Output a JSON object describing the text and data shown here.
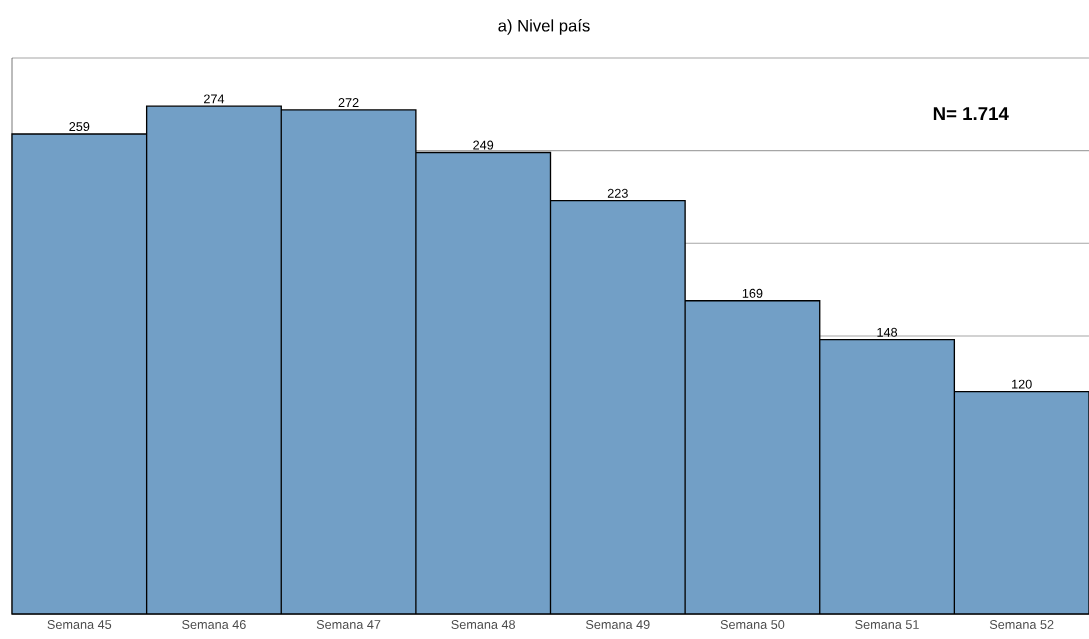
{
  "chart_data": {
    "type": "bar",
    "title": "a)    Nivel país",
    "categories": [
      "Semana 45",
      "Semana 46",
      "Semana 47",
      "Semana 48",
      "Semana 49",
      "Semana 50",
      "Semana 51",
      "Semana 52"
    ],
    "values": [
      259,
      274,
      272,
      249,
      223,
      169,
      148,
      120
    ],
    "color": "#729fc6",
    "data_labels": true,
    "ylim": [
      0,
      300
    ],
    "yticks": [
      {
        "value": 0,
        "label": null
      },
      {
        "value": 50,
        "label": null
      },
      {
        "value": 100,
        "label": null
      },
      {
        "value": 150,
        "label": null
      },
      {
        "value": 200,
        "label": null
      },
      {
        "value": 250,
        "label": null
      },
      {
        "value": 300,
        "label": null
      }
    ],
    "grid": "y",
    "tick_labels": "x",
    "annotations": [
      "N= 1.714"
    ]
  }
}
